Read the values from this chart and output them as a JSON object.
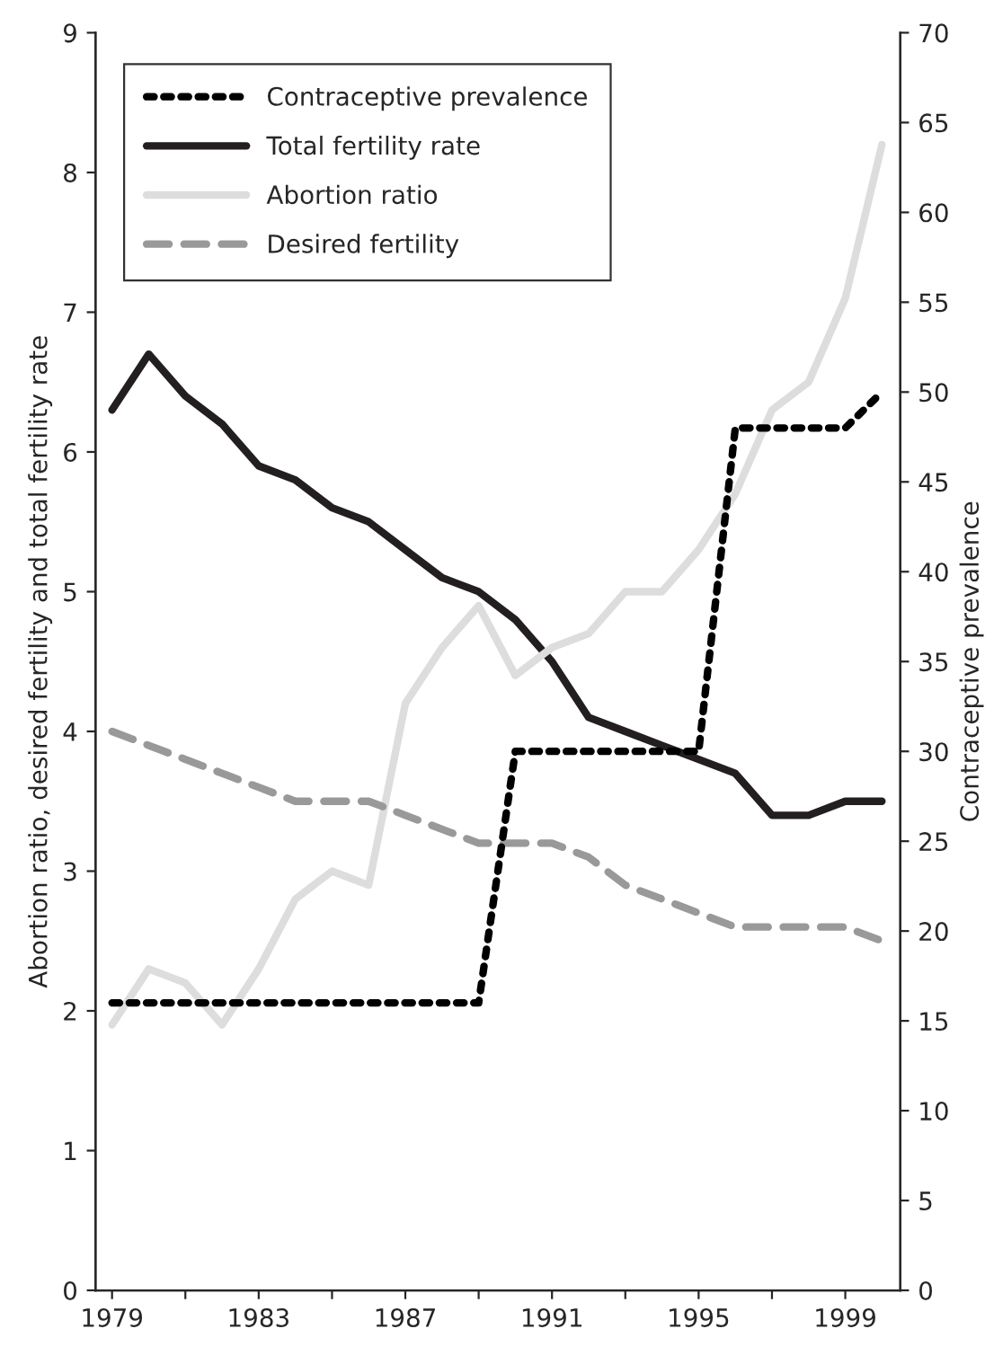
{
  "chart_data": {
    "type": "line",
    "xlabel": null,
    "ylabel": "Abortion ratio, desired fertility and total fertility rate",
    "y2label": "Contraceptive prevalence",
    "x": [
      1979,
      1980,
      1981,
      1982,
      1983,
      1984,
      1985,
      1986,
      1987,
      1988,
      1989,
      1990,
      1991,
      1992,
      1993,
      1994,
      1995,
      1996,
      1997,
      1998,
      1999,
      2000
    ],
    "series": [
      {
        "name": "Contraceptive prevalence",
        "color": "#000000",
        "line_style": "dotted",
        "axis": "y2",
        "values": [
          16,
          16,
          16,
          16,
          16,
          16,
          16,
          16,
          16,
          16,
          16,
          30,
          30,
          30,
          30,
          30,
          30,
          48,
          48,
          48,
          48,
          50
        ]
      },
      {
        "name": "Total fertility rate",
        "color": "#231f20",
        "line_style": "solid",
        "values": [
          6.3,
          6.7,
          6.4,
          6.2,
          5.9,
          5.8,
          5.6,
          5.5,
          5.3,
          5.1,
          5.0,
          4.8,
          4.5,
          4.1,
          4.0,
          3.9,
          3.8,
          3.7,
          3.4,
          3.4,
          3.5,
          3.5
        ]
      },
      {
        "name": "Abortion ratio",
        "color": "#dddddd",
        "line_style": "solid",
        "values": [
          1.9,
          2.3,
          2.2,
          1.9,
          2.3,
          2.8,
          3.0,
          2.9,
          4.2,
          4.6,
          4.9,
          4.4,
          4.6,
          4.7,
          5.0,
          5.0,
          5.3,
          5.7,
          6.3,
          6.5,
          7.1,
          8.2
        ]
      },
      {
        "name": "Desired fertility",
        "color": "#999999",
        "line_style": "dashed",
        "values": [
          4.0,
          3.9,
          3.8,
          3.7,
          3.6,
          3.5,
          3.5,
          3.5,
          3.4,
          3.3,
          3.2,
          3.2,
          3.2,
          3.1,
          2.9,
          2.8,
          2.7,
          2.6,
          2.6,
          2.6,
          2.6,
          2.5
        ]
      }
    ],
    "xlim": [
      1978.55,
      2000.5
    ],
    "xticks": [
      1979,
      {
        "value": 1981,
        "label": null
      },
      1983,
      {
        "value": 1985,
        "label": null
      },
      1987,
      {
        "value": 1989,
        "label": null
      },
      1991,
      {
        "value": 1993,
        "label": null
      },
      1995,
      {
        "value": 1997,
        "label": null
      },
      1999
    ],
    "ylim": [
      0,
      9
    ],
    "yticks": [
      0,
      1,
      2,
      3,
      4,
      5,
      6,
      7,
      8,
      9
    ],
    "y2lim": [
      0,
      70
    ],
    "y2ticks": [
      0,
      5,
      10,
      15,
      20,
      25,
      30,
      35,
      40,
      45,
      50,
      55,
      60,
      65,
      70
    ],
    "grid": false,
    "legend": "top left",
    "marker": "none"
  }
}
